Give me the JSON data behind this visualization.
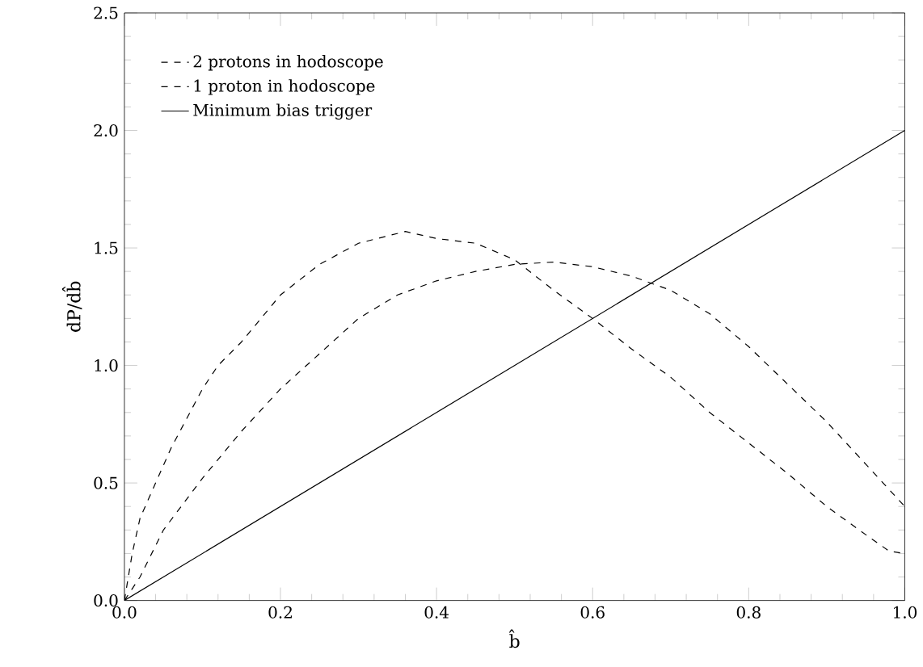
{
  "chart_data": {
    "type": "line",
    "xlabel": "b̂",
    "ylabel": "dP/db̂",
    "xlim": [
      0,
      1
    ],
    "ylim": [
      0,
      2.5
    ],
    "xticks": [
      {
        "value": 0,
        "label": "0.0"
      },
      {
        "value": 0.2,
        "label": "0.2"
      },
      {
        "value": 0.4,
        "label": "0.4"
      },
      {
        "value": 0.6,
        "label": "0.6"
      },
      {
        "value": 0.8,
        "label": "0.8"
      },
      {
        "value": 1,
        "label": "1.0"
      }
    ],
    "yticks": [
      {
        "value": 0,
        "label": "0.0"
      },
      {
        "value": 0.5,
        "label": "0.5"
      },
      {
        "value": 1,
        "label": "1.0"
      },
      {
        "value": 1.5,
        "label": "1.5"
      },
      {
        "value": 2,
        "label": "2.0"
      },
      {
        "value": 2.5,
        "label": "2.5"
      }
    ],
    "legend": "top left",
    "grid": false,
    "marker": "none",
    "series": [
      {
        "name": "2 protons in hodoscope",
        "color": "#000000",
        "line_style": "dashed",
        "x": [
          0,
          0.01,
          0.02,
          0.04,
          0.06,
          0.1,
          0.12,
          0.15,
          0.2,
          0.25,
          0.3,
          0.36,
          0.4,
          0.45,
          0.5,
          0.55,
          0.6,
          0.65,
          0.7,
          0.75,
          0.8,
          0.85,
          0.9,
          0.95,
          0.98,
          1.0
        ],
        "values": [
          0,
          0.2,
          0.35,
          0.5,
          0.65,
          0.9,
          1.0,
          1.1,
          1.3,
          1.43,
          1.52,
          1.57,
          1.54,
          1.52,
          1.45,
          1.32,
          1.2,
          1.07,
          0.95,
          0.8,
          0.67,
          0.54,
          0.4,
          0.28,
          0.21,
          0.2
        ]
      },
      {
        "name": "1 proton in hodoscope",
        "color": "#000000",
        "line_style": "dashed",
        "x": [
          0,
          0.02,
          0.05,
          0.1,
          0.15,
          0.2,
          0.25,
          0.3,
          0.35,
          0.4,
          0.45,
          0.5,
          0.55,
          0.6,
          0.65,
          0.7,
          0.75,
          0.8,
          0.85,
          0.9,
          0.95,
          1.0
        ],
        "values": [
          0,
          0.1,
          0.3,
          0.52,
          0.72,
          0.9,
          1.05,
          1.2,
          1.3,
          1.36,
          1.4,
          1.43,
          1.44,
          1.42,
          1.38,
          1.32,
          1.22,
          1.08,
          0.92,
          0.76,
          0.58,
          0.4
        ]
      },
      {
        "name": "Minimum bias trigger",
        "color": "#000000",
        "line_style": "solid",
        "x": [
          0,
          1
        ],
        "values": [
          0,
          2
        ]
      }
    ]
  }
}
